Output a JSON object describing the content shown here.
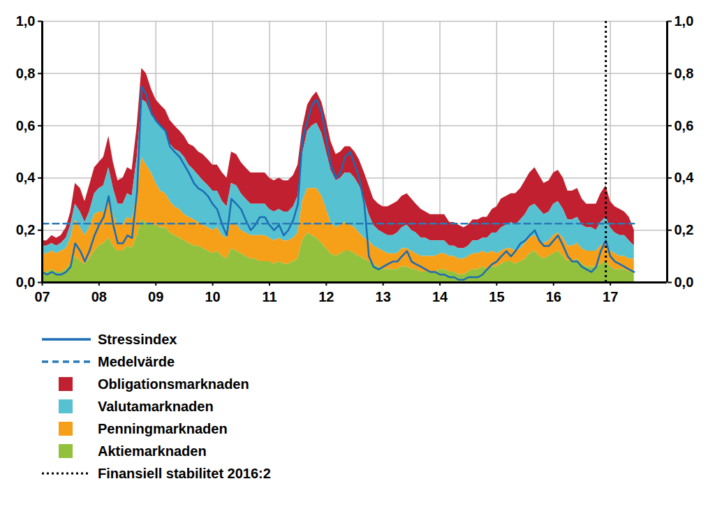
{
  "chart_data": {
    "type": "stacked_area",
    "stacked": true,
    "grid": true,
    "x": [
      2007,
      2007.08,
      2007.17,
      2007.25,
      2007.33,
      2007.42,
      2007.5,
      2007.58,
      2007.67,
      2007.75,
      2007.83,
      2007.92,
      2008,
      2008.08,
      2008.17,
      2008.25,
      2008.33,
      2008.42,
      2008.5,
      2008.58,
      2008.67,
      2008.75,
      2008.83,
      2008.92,
      2009,
      2009.08,
      2009.17,
      2009.25,
      2009.33,
      2009.42,
      2009.5,
      2009.58,
      2009.67,
      2009.75,
      2009.83,
      2009.92,
      2010,
      2010.08,
      2010.17,
      2010.25,
      2010.33,
      2010.42,
      2010.5,
      2010.58,
      2010.67,
      2010.75,
      2010.83,
      2010.92,
      2011,
      2011.08,
      2011.17,
      2011.25,
      2011.33,
      2011.42,
      2011.5,
      2011.58,
      2011.67,
      2011.75,
      2011.83,
      2011.92,
      2012,
      2012.08,
      2012.17,
      2012.25,
      2012.33,
      2012.42,
      2012.5,
      2012.58,
      2012.67,
      2012.75,
      2012.83,
      2012.92,
      2013,
      2013.08,
      2013.17,
      2013.25,
      2013.33,
      2013.42,
      2013.5,
      2013.58,
      2013.67,
      2013.75,
      2013.83,
      2013.92,
      2014,
      2014.08,
      2014.17,
      2014.25,
      2014.33,
      2014.42,
      2014.5,
      2014.58,
      2014.67,
      2014.75,
      2014.83,
      2014.92,
      2015,
      2015.08,
      2015.17,
      2015.25,
      2015.33,
      2015.42,
      2015.5,
      2015.58,
      2015.67,
      2015.75,
      2015.83,
      2015.92,
      2016,
      2016.08,
      2016.17,
      2016.25,
      2016.33,
      2016.42,
      2016.5,
      2016.58,
      2016.67,
      2016.75,
      2016.83,
      2016.92,
      2017,
      2017.08,
      2017.17,
      2017.25,
      2017.33,
      2017.42
    ],
    "xlim": [
      2007,
      2018
    ],
    "xticks": [
      {
        "value": 2007,
        "label": "07"
      },
      {
        "value": 2008,
        "label": "08"
      },
      {
        "value": 2009,
        "label": "09"
      },
      {
        "value": 2010,
        "label": "10"
      },
      {
        "value": 2011,
        "label": "11"
      },
      {
        "value": 2012,
        "label": "12"
      },
      {
        "value": 2013,
        "label": "13"
      },
      {
        "value": 2014,
        "label": "14"
      },
      {
        "value": 2015,
        "label": "15"
      },
      {
        "value": 2016,
        "label": "16"
      },
      {
        "value": 2017,
        "label": "17"
      }
    ],
    "ylim": [
      0,
      1
    ],
    "yticks": [
      {
        "value": 0,
        "label": "0,0"
      },
      {
        "value": 0.2,
        "label": "0,2"
      },
      {
        "value": 0.4,
        "label": "0,4"
      },
      {
        "value": 0.6,
        "label": "0,6"
      },
      {
        "value": 0.8,
        "label": "0,8"
      },
      {
        "value": 1,
        "label": "1,0"
      }
    ],
    "series": [
      {
        "name": "Stressindex",
        "type": "line",
        "line_style": "solid",
        "color": "#1a6cb5",
        "values": [
          0.04,
          0.03,
          0.04,
          0.03,
          0.03,
          0.04,
          0.06,
          0.15,
          0.12,
          0.08,
          0.12,
          0.18,
          0.22,
          0.25,
          0.33,
          0.22,
          0.15,
          0.15,
          0.18,
          0.17,
          0.35,
          0.75,
          0.72,
          0.65,
          0.62,
          0.6,
          0.58,
          0.52,
          0.5,
          0.48,
          0.45,
          0.42,
          0.38,
          0.36,
          0.35,
          0.33,
          0.3,
          0.28,
          0.22,
          0.18,
          0.32,
          0.3,
          0.28,
          0.24,
          0.2,
          0.22,
          0.25,
          0.25,
          0.22,
          0.2,
          0.22,
          0.18,
          0.2,
          0.24,
          0.3,
          0.55,
          0.62,
          0.68,
          0.7,
          0.65,
          0.55,
          0.45,
          0.4,
          0.42,
          0.48,
          0.5,
          0.45,
          0.4,
          0.3,
          0.1,
          0.06,
          0.05,
          0.06,
          0.07,
          0.08,
          0.08,
          0.1,
          0.12,
          0.08,
          0.07,
          0.06,
          0.05,
          0.04,
          0.04,
          0.03,
          0.03,
          0.02,
          0.02,
          0.01,
          0.01,
          0.02,
          0.02,
          0.02,
          0.03,
          0.05,
          0.07,
          0.08,
          0.1,
          0.12,
          0.1,
          0.12,
          0.15,
          0.16,
          0.18,
          0.2,
          0.16,
          0.14,
          0.14,
          0.16,
          0.18,
          0.14,
          0.1,
          0.08,
          0.08,
          0.06,
          0.05,
          0.04,
          0.06,
          0.12,
          0.16,
          0.1,
          0.08,
          0.07,
          0.06,
          0.05,
          0.04
        ]
      },
      {
        "name": "Obligationsmarknaden",
        "type": "area",
        "color": "#c0202f",
        "values": [
          0.02,
          0.02,
          0.03,
          0.03,
          0.03,
          0.04,
          0.05,
          0.08,
          0.09,
          0.08,
          0.1,
          0.1,
          0.1,
          0.11,
          0.12,
          0.1,
          0.09,
          0.1,
          0.1,
          0.1,
          0.12,
          0.12,
          0.11,
          0.1,
          0.08,
          0.08,
          0.08,
          0.09,
          0.09,
          0.08,
          0.08,
          0.08,
          0.09,
          0.09,
          0.1,
          0.1,
          0.1,
          0.1,
          0.11,
          0.11,
          0.12,
          0.12,
          0.12,
          0.12,
          0.12,
          0.12,
          0.12,
          0.12,
          0.12,
          0.12,
          0.12,
          0.12,
          0.12,
          0.12,
          0.12,
          0.1,
          0.1,
          0.11,
          0.12,
          0.12,
          0.12,
          0.11,
          0.1,
          0.1,
          0.1,
          0.1,
          0.1,
          0.1,
          0.1,
          0.11,
          0.1,
          0.1,
          0.1,
          0.11,
          0.12,
          0.12,
          0.12,
          0.12,
          0.12,
          0.11,
          0.11,
          0.1,
          0.1,
          0.1,
          0.1,
          0.1,
          0.09,
          0.09,
          0.09,
          0.08,
          0.08,
          0.08,
          0.08,
          0.08,
          0.08,
          0.09,
          0.1,
          0.11,
          0.11,
          0.11,
          0.12,
          0.12,
          0.13,
          0.13,
          0.14,
          0.13,
          0.12,
          0.12,
          0.12,
          0.12,
          0.12,
          0.11,
          0.11,
          0.11,
          0.1,
          0.09,
          0.09,
          0.1,
          0.11,
          0.12,
          0.1,
          0.1,
          0.1,
          0.09,
          0.09,
          0.06
        ]
      },
      {
        "name": "Valutamarknaden",
        "type": "area",
        "color": "#56c1d1",
        "values": [
          0.03,
          0.03,
          0.03,
          0.03,
          0.03,
          0.04,
          0.05,
          0.06,
          0.06,
          0.05,
          0.06,
          0.08,
          0.09,
          0.1,
          0.12,
          0.1,
          0.08,
          0.08,
          0.09,
          0.09,
          0.14,
          0.22,
          0.24,
          0.22,
          0.24,
          0.25,
          0.24,
          0.22,
          0.22,
          0.22,
          0.22,
          0.2,
          0.19,
          0.18,
          0.17,
          0.16,
          0.15,
          0.14,
          0.13,
          0.12,
          0.15,
          0.15,
          0.14,
          0.13,
          0.12,
          0.12,
          0.12,
          0.12,
          0.11,
          0.11,
          0.11,
          0.11,
          0.11,
          0.12,
          0.14,
          0.18,
          0.22,
          0.24,
          0.25,
          0.24,
          0.22,
          0.2,
          0.18,
          0.18,
          0.19,
          0.2,
          0.19,
          0.18,
          0.15,
          0.1,
          0.08,
          0.07,
          0.07,
          0.07,
          0.07,
          0.08,
          0.08,
          0.09,
          0.08,
          0.08,
          0.07,
          0.07,
          0.06,
          0.06,
          0.05,
          0.05,
          0.04,
          0.04,
          0.04,
          0.04,
          0.04,
          0.05,
          0.05,
          0.05,
          0.06,
          0.07,
          0.08,
          0.09,
          0.09,
          0.1,
          0.1,
          0.11,
          0.11,
          0.12,
          0.12,
          0.12,
          0.11,
          0.11,
          0.12,
          0.12,
          0.11,
          0.1,
          0.1,
          0.1,
          0.09,
          0.09,
          0.09,
          0.08,
          0.09,
          0.1,
          0.09,
          0.08,
          0.08,
          0.08,
          0.07,
          0.05
        ]
      },
      {
        "name": "Penningmarknaden",
        "type": "area",
        "color": "#f6a01a",
        "values": [
          0.07,
          0.07,
          0.07,
          0.07,
          0.08,
          0.08,
          0.1,
          0.14,
          0.13,
          0.11,
          0.12,
          0.14,
          0.13,
          0.12,
          0.15,
          0.12,
          0.1,
          0.1,
          0.11,
          0.11,
          0.16,
          0.24,
          0.22,
          0.2,
          0.16,
          0.14,
          0.13,
          0.12,
          0.11,
          0.11,
          0.1,
          0.1,
          0.1,
          0.09,
          0.09,
          0.09,
          0.09,
          0.09,
          0.08,
          0.08,
          0.1,
          0.1,
          0.09,
          0.09,
          0.09,
          0.09,
          0.1,
          0.1,
          0.09,
          0.09,
          0.09,
          0.09,
          0.09,
          0.09,
          0.1,
          0.15,
          0.17,
          0.18,
          0.19,
          0.18,
          0.15,
          0.12,
          0.11,
          0.11,
          0.11,
          0.1,
          0.1,
          0.09,
          0.08,
          0.08,
          0.07,
          0.07,
          0.07,
          0.06,
          0.06,
          0.06,
          0.07,
          0.07,
          0.07,
          0.06,
          0.06,
          0.06,
          0.06,
          0.06,
          0.06,
          0.06,
          0.06,
          0.06,
          0.06,
          0.06,
          0.06,
          0.06,
          0.06,
          0.06,
          0.06,
          0.06,
          0.05,
          0.05,
          0.05,
          0.05,
          0.05,
          0.05,
          0.06,
          0.06,
          0.06,
          0.06,
          0.06,
          0.06,
          0.07,
          0.07,
          0.07,
          0.06,
          0.06,
          0.06,
          0.06,
          0.06,
          0.06,
          0.06,
          0.07,
          0.07,
          0.06,
          0.06,
          0.05,
          0.05,
          0.05,
          0.05
        ]
      },
      {
        "name": "Aktiemarknaden",
        "type": "area",
        "color": "#93c13e",
        "values": [
          0.04,
          0.04,
          0.05,
          0.04,
          0.04,
          0.05,
          0.07,
          0.1,
          0.08,
          0.07,
          0.09,
          0.12,
          0.14,
          0.15,
          0.17,
          0.14,
          0.12,
          0.12,
          0.14,
          0.13,
          0.18,
          0.24,
          0.23,
          0.22,
          0.22,
          0.21,
          0.21,
          0.19,
          0.18,
          0.17,
          0.16,
          0.15,
          0.14,
          0.14,
          0.13,
          0.12,
          0.11,
          0.12,
          0.1,
          0.09,
          0.13,
          0.12,
          0.11,
          0.1,
          0.09,
          0.09,
          0.08,
          0.08,
          0.08,
          0.07,
          0.08,
          0.07,
          0.07,
          0.08,
          0.09,
          0.16,
          0.19,
          0.18,
          0.17,
          0.15,
          0.13,
          0.11,
          0.1,
          0.11,
          0.12,
          0.12,
          0.11,
          0.1,
          0.09,
          0.08,
          0.07,
          0.06,
          0.05,
          0.05,
          0.05,
          0.05,
          0.06,
          0.06,
          0.05,
          0.05,
          0.04,
          0.04,
          0.04,
          0.04,
          0.05,
          0.05,
          0.04,
          0.04,
          0.03,
          0.03,
          0.04,
          0.05,
          0.05,
          0.06,
          0.05,
          0.06,
          0.06,
          0.07,
          0.08,
          0.08,
          0.07,
          0.08,
          0.09,
          0.11,
          0.12,
          0.1,
          0.09,
          0.1,
          0.11,
          0.12,
          0.1,
          0.08,
          0.08,
          0.09,
          0.07,
          0.06,
          0.06,
          0.06,
          0.07,
          0.08,
          0.06,
          0.05,
          0.05,
          0.05,
          0.04,
          0.04
        ]
      }
    ],
    "reference_lines": [
      {
        "name": "Medelvärde",
        "y": 0.225,
        "color": "#2a7ab8",
        "line_style": "dashed"
      }
    ],
    "vertical_lines": [
      {
        "name": "Finansiell stabilitet 2016:2",
        "x": 2016.92,
        "color": "#000000",
        "line_style": "dotted"
      }
    ]
  }
}
